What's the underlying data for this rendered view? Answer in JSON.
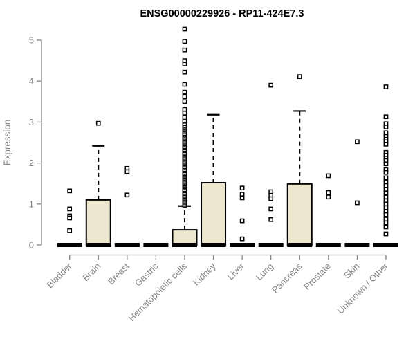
{
  "chart_data": {
    "type": "box",
    "title": "ENSG00000229926 - RP11-424E7.3",
    "ylabel": "Expression",
    "xlabel": "",
    "ylim": [
      0,
      5.3
    ],
    "yticks": [
      0,
      1,
      2,
      3,
      4,
      5
    ],
    "grid": false,
    "legend_position": "none",
    "box_fill": "#ECE7CE",
    "axis_color": "#848484",
    "data_color": "#000000",
    "categories": [
      "Bladder",
      "Brain",
      "Breast",
      "Gastric",
      "Hematopoietic cells",
      "Kidney",
      "Liver",
      "Lung",
      "Pancreas",
      "Prostate",
      "Skin",
      "Unknown / Other"
    ],
    "series": [
      {
        "category": "Bladder",
        "q1": 0,
        "median": 0,
        "q3": 0,
        "whisker_low": 0,
        "whisker_high": 0,
        "outliers": [
          1.32,
          0.88,
          0.71,
          0.66,
          0.35
        ]
      },
      {
        "category": "Brain",
        "q1": 0,
        "median": 0,
        "q3": 1.1,
        "whisker_low": 0,
        "whisker_high": 2.42,
        "outliers": [
          2.97
        ]
      },
      {
        "category": "Breast",
        "q1": 0,
        "median": 0,
        "q3": 0,
        "whisker_low": 0,
        "whisker_high": 0,
        "outliers": [
          1.87,
          1.79,
          1.22
        ]
      },
      {
        "category": "Gastric",
        "q1": 0,
        "median": 0,
        "q3": 0,
        "whisker_low": 0,
        "whisker_high": 0,
        "outliers": []
      },
      {
        "category": "Hematopoietic cells",
        "q1": 0,
        "median": 0,
        "q3": 0.37,
        "whisker_low": 0,
        "whisker_high": 0.95,
        "outliers": [
          0.97,
          1.0,
          1.04,
          1.07,
          1.11,
          1.14,
          1.18,
          1.21,
          1.25,
          1.28,
          1.32,
          1.35,
          1.39,
          1.42,
          1.46,
          1.49,
          1.53,
          1.56,
          1.6,
          1.63,
          1.67,
          1.7,
          1.74,
          1.77,
          1.81,
          1.84,
          1.88,
          1.91,
          1.95,
          1.98,
          2.02,
          2.05,
          2.09,
          2.12,
          2.16,
          2.19,
          2.23,
          2.26,
          2.3,
          2.33,
          2.37,
          2.4,
          2.44,
          2.47,
          2.51,
          2.54,
          2.58,
          2.61,
          2.65,
          2.68,
          2.72,
          2.76,
          2.8,
          2.85,
          2.9,
          2.96,
          3.02,
          3.11,
          3.22,
          3.31,
          3.5,
          3.62,
          3.73,
          3.92,
          4.22,
          4.42,
          4.5,
          4.76,
          4.97,
          5.27
        ]
      },
      {
        "category": "Kidney",
        "q1": 0,
        "median": 0,
        "q3": 1.52,
        "whisker_low": 0,
        "whisker_high": 3.18,
        "outliers": []
      },
      {
        "category": "Liver",
        "q1": 0,
        "median": 0,
        "q3": 0,
        "whisker_low": 0,
        "whisker_high": 0,
        "outliers": [
          1.39,
          1.24,
          1.15,
          0.59,
          0.15
        ]
      },
      {
        "category": "Lung",
        "q1": 0,
        "median": 0,
        "q3": 0,
        "whisker_low": 0,
        "whisker_high": 0,
        "outliers": [
          3.9,
          1.3,
          1.21,
          1.13,
          0.88,
          0.62
        ]
      },
      {
        "category": "Pancreas",
        "q1": 0,
        "median": 0,
        "q3": 1.49,
        "whisker_low": 0,
        "whisker_high": 3.27,
        "outliers": [
          4.11
        ]
      },
      {
        "category": "Prostate",
        "q1": 0,
        "median": 0,
        "q3": 0,
        "whisker_low": 0,
        "whisker_high": 0,
        "outliers": [
          1.69,
          1.28,
          1.17
        ]
      },
      {
        "category": "Skin",
        "q1": 0,
        "median": 0,
        "q3": 0,
        "whisker_low": 0,
        "whisker_high": 0,
        "outliers": [
          2.52,
          1.03
        ]
      },
      {
        "category": "Unknown / Other",
        "q1": 0,
        "median": 0,
        "q3": 0,
        "whisker_low": 0,
        "whisker_high": 0,
        "outliers": [
          3.86,
          3.13,
          2.96,
          2.88,
          2.74,
          2.65,
          2.58,
          2.52,
          2.46,
          2.26,
          2.19,
          2.12,
          2.06,
          1.98,
          1.84,
          1.77,
          1.64,
          1.54,
          1.45,
          1.36,
          1.27,
          1.17,
          1.08,
          1.0,
          0.91,
          0.82,
          0.74,
          0.63,
          0.54,
          0.44,
          0.27
        ]
      }
    ]
  }
}
